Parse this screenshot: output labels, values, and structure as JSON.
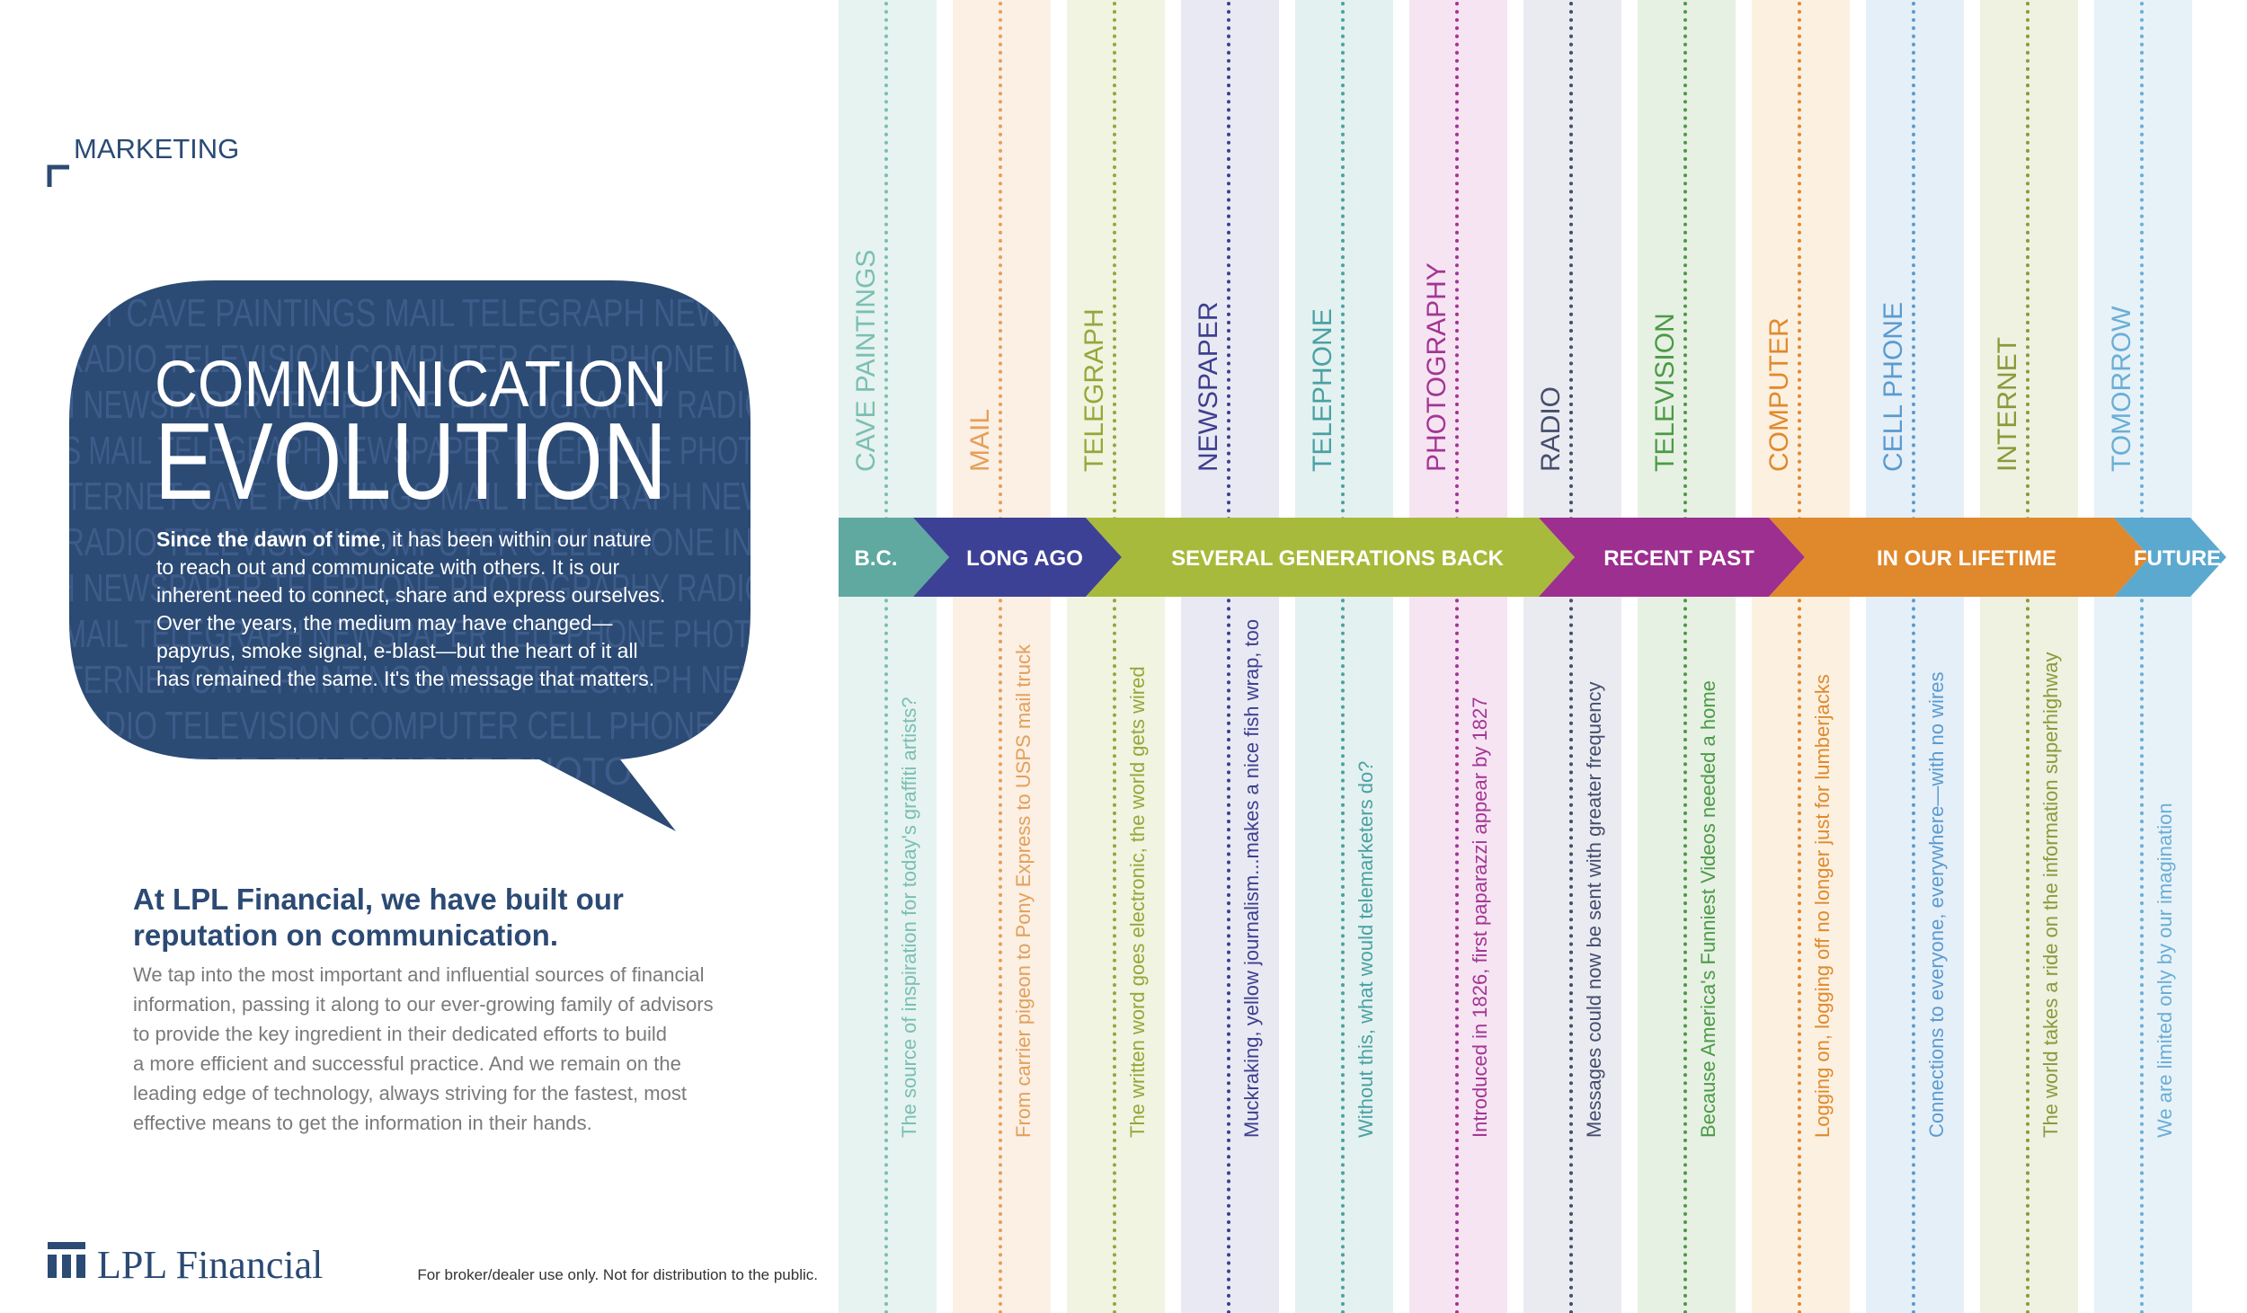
{
  "header": {
    "section": "MARKETING"
  },
  "bubble": {
    "title_line1": "COMMUNICATION",
    "title_line2": "EVOLUTION",
    "background_rows": [
      "RNET  CAVE PAINTINGS  MAIL  TELEGRAPH  NEWSPAPER",
      "RADIO  TELEVISION  COMPUTER  CELL PHONE  INTERNET",
      "PH  NEWSPAPER  TELEPHONE  PHOTOGRAPHY  RADIO  TELE",
      "S  MAIL  TELEGRAPH  NEWSPAPER  TELEPHONE  PHOTOGRAPH",
      "INTERNET  CAVE PAINTINGS  MAIL  TELEGRAPH  NEWSPAP",
      "RADIO  TELEVISION  COMPUTER  CELL PHONE  INTERNET",
      "PH  NEWSPAPER  TELEPHONE  PHOTOGRAPHY  RADIO  TELE",
      "MAIL  TELEGRAPH  NEWSPAPER  TELEPHONE  PHOTOGRAPH",
      "INTERNET  CAVE PAINTINGS  MAIL  TELEGRAPH  NEWSPAP",
      "RADIO  TELEVISION  COMPUTER  CELL PHONE  INTERNET",
      "NEWSPAPER  TELEPHONE  PHOTOGRAPHY  RA"
    ],
    "intro_lead": "Since the dawn of time",
    "intro_lines": [
      ", it has been within our nature",
      "to reach out and communicate with others. It is our",
      "inherent need to connect, share and express ourselves.",
      "Over the years, the medium may have changed—",
      "papyrus, smoke signal, e-blast—but the heart of it all",
      "has remained the same. It's the message that matters."
    ]
  },
  "pitch": {
    "heading": [
      "At LPL Financial, we have built our",
      "reputation on communication."
    ],
    "body": [
      "We tap into the most important and influential sources of financial",
      "information, passing it along to our ever-growing family of advisors",
      "to provide the key ingredient in their dedicated efforts to build",
      "a more efficient and successful practice. And we remain on the",
      "leading edge of technology, always striving for the fastest, most",
      "effective means to get the information in their hands."
    ]
  },
  "footer": {
    "logo": "LPL Financial",
    "disclaimer": "For broker/dealer use only. Not for distribution to the public."
  },
  "timeline": {
    "eras": [
      {
        "label": "B.C.",
        "color": "#5fa9a0"
      },
      {
        "label": "LONG AGO",
        "color": "#3d4196"
      },
      {
        "label": "SEVERAL GENERATIONS BACK",
        "color": "#a8ba3b"
      },
      {
        "label": "RECENT PAST",
        "color": "#9c2f8f"
      },
      {
        "label": "IN OUR LIFETIME",
        "color": "#e0882c"
      },
      {
        "label": "FUTURE",
        "color": "#5ca9cf"
      }
    ],
    "columns": [
      {
        "title": "CAVE PAINTINGS",
        "description": "The source of inspiration for today's graffiti artists?",
        "color": "#7bbfb2",
        "bg": "#e6f3f0"
      },
      {
        "title": "MAIL",
        "description": "From carrier pigeon to Pony Express to USPS mail truck",
        "color": "#e3a05a",
        "bg": "#fcefe3"
      },
      {
        "title": "TELEGRAPH",
        "description": "The written word goes electronic, the world gets wired",
        "color": "#97a63a",
        "bg": "#f1f4e0"
      },
      {
        "title": "NEWSPAPER",
        "description": "Muckraking, yellow journalism...makes a nice fish wrap, too",
        "color": "#3d3f8e",
        "bg": "#e9e9f3"
      },
      {
        "title": "TELEPHONE",
        "description": "Without this, what would telemarketers do?",
        "color": "#4aa1a2",
        "bg": "#e4f1f1"
      },
      {
        "title": "PHOTOGRAPHY",
        "description": "Introduced in 1826, first paparazzi appear by 1827",
        "color": "#a33594",
        "bg": "#f6e4f2"
      },
      {
        "title": "RADIO",
        "description": "Messages could now be sent with greater frequency",
        "color": "#454d6e",
        "bg": "#eaebf0"
      },
      {
        "title": "TELEVISION",
        "description": "Because America's Funniest Videos needed a home",
        "color": "#4c9a45",
        "bg": "#e6f1e4"
      },
      {
        "title": "COMPUTER",
        "description": "Logging on, logging off no longer just for lumberjacks",
        "color": "#e08a2c",
        "bg": "#fcf0e1"
      },
      {
        "title": "CELL PHONE",
        "description": "Connections to everyone, everywhere—with no wires",
        "color": "#5a9bd0",
        "bg": "#e5eff8"
      },
      {
        "title": "INTERNET",
        "description": "The world takes a ride on the information superhighway",
        "color": "#8a9a3a",
        "bg": "#eff1e1"
      },
      {
        "title": "TOMORROW",
        "description": "We are limited only by our imagination",
        "color": "#6aaed6",
        "bg": "#e7f2f8"
      }
    ]
  }
}
